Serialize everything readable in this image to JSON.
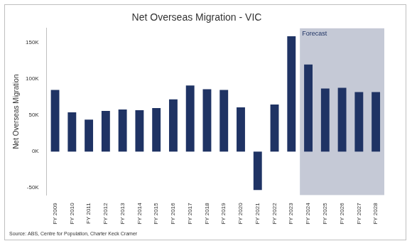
{
  "chart_data": {
    "type": "bar",
    "title": "Net Overseas Migration - VIC",
    "y_label": "Net Overseas Migration",
    "source": "Source: ABS, Centre for Population, Charter Keck Cramer",
    "categories": [
      "FY 2009",
      "FY 2010",
      "FY 2011",
      "FY 2012",
      "FY 2013",
      "FY 2014",
      "FY 2015",
      "FY 2016",
      "FY 2017",
      "FY 2018",
      "FY 2019",
      "FY 2020",
      "FY 2021",
      "FY 2022",
      "FY 2023",
      "FY 2024",
      "FY 2025",
      "FY 2026",
      "FY 2027",
      "FY 2028"
    ],
    "values": [
      85000,
      54000,
      44000,
      56000,
      58000,
      57000,
      60000,
      72000,
      91000,
      86000,
      85000,
      61000,
      -53000,
      65000,
      159000,
      120000,
      87000,
      88000,
      82000,
      82000
    ],
    "color": "#1f3364",
    "ylim": [
      -60000,
      170000
    ],
    "yticks": [
      {
        "value": -50000,
        "label": "-50K"
      },
      {
        "value": 0,
        "label": "0K"
      },
      {
        "value": 50000,
        "label": "50K"
      },
      {
        "value": 100000,
        "label": "100K"
      },
      {
        "value": 150000,
        "label": "150K"
      }
    ],
    "grid": false,
    "annotations": [
      {
        "text": "Forecast",
        "x_start": "FY 2024",
        "x_end": "FY 2028"
      }
    ]
  }
}
